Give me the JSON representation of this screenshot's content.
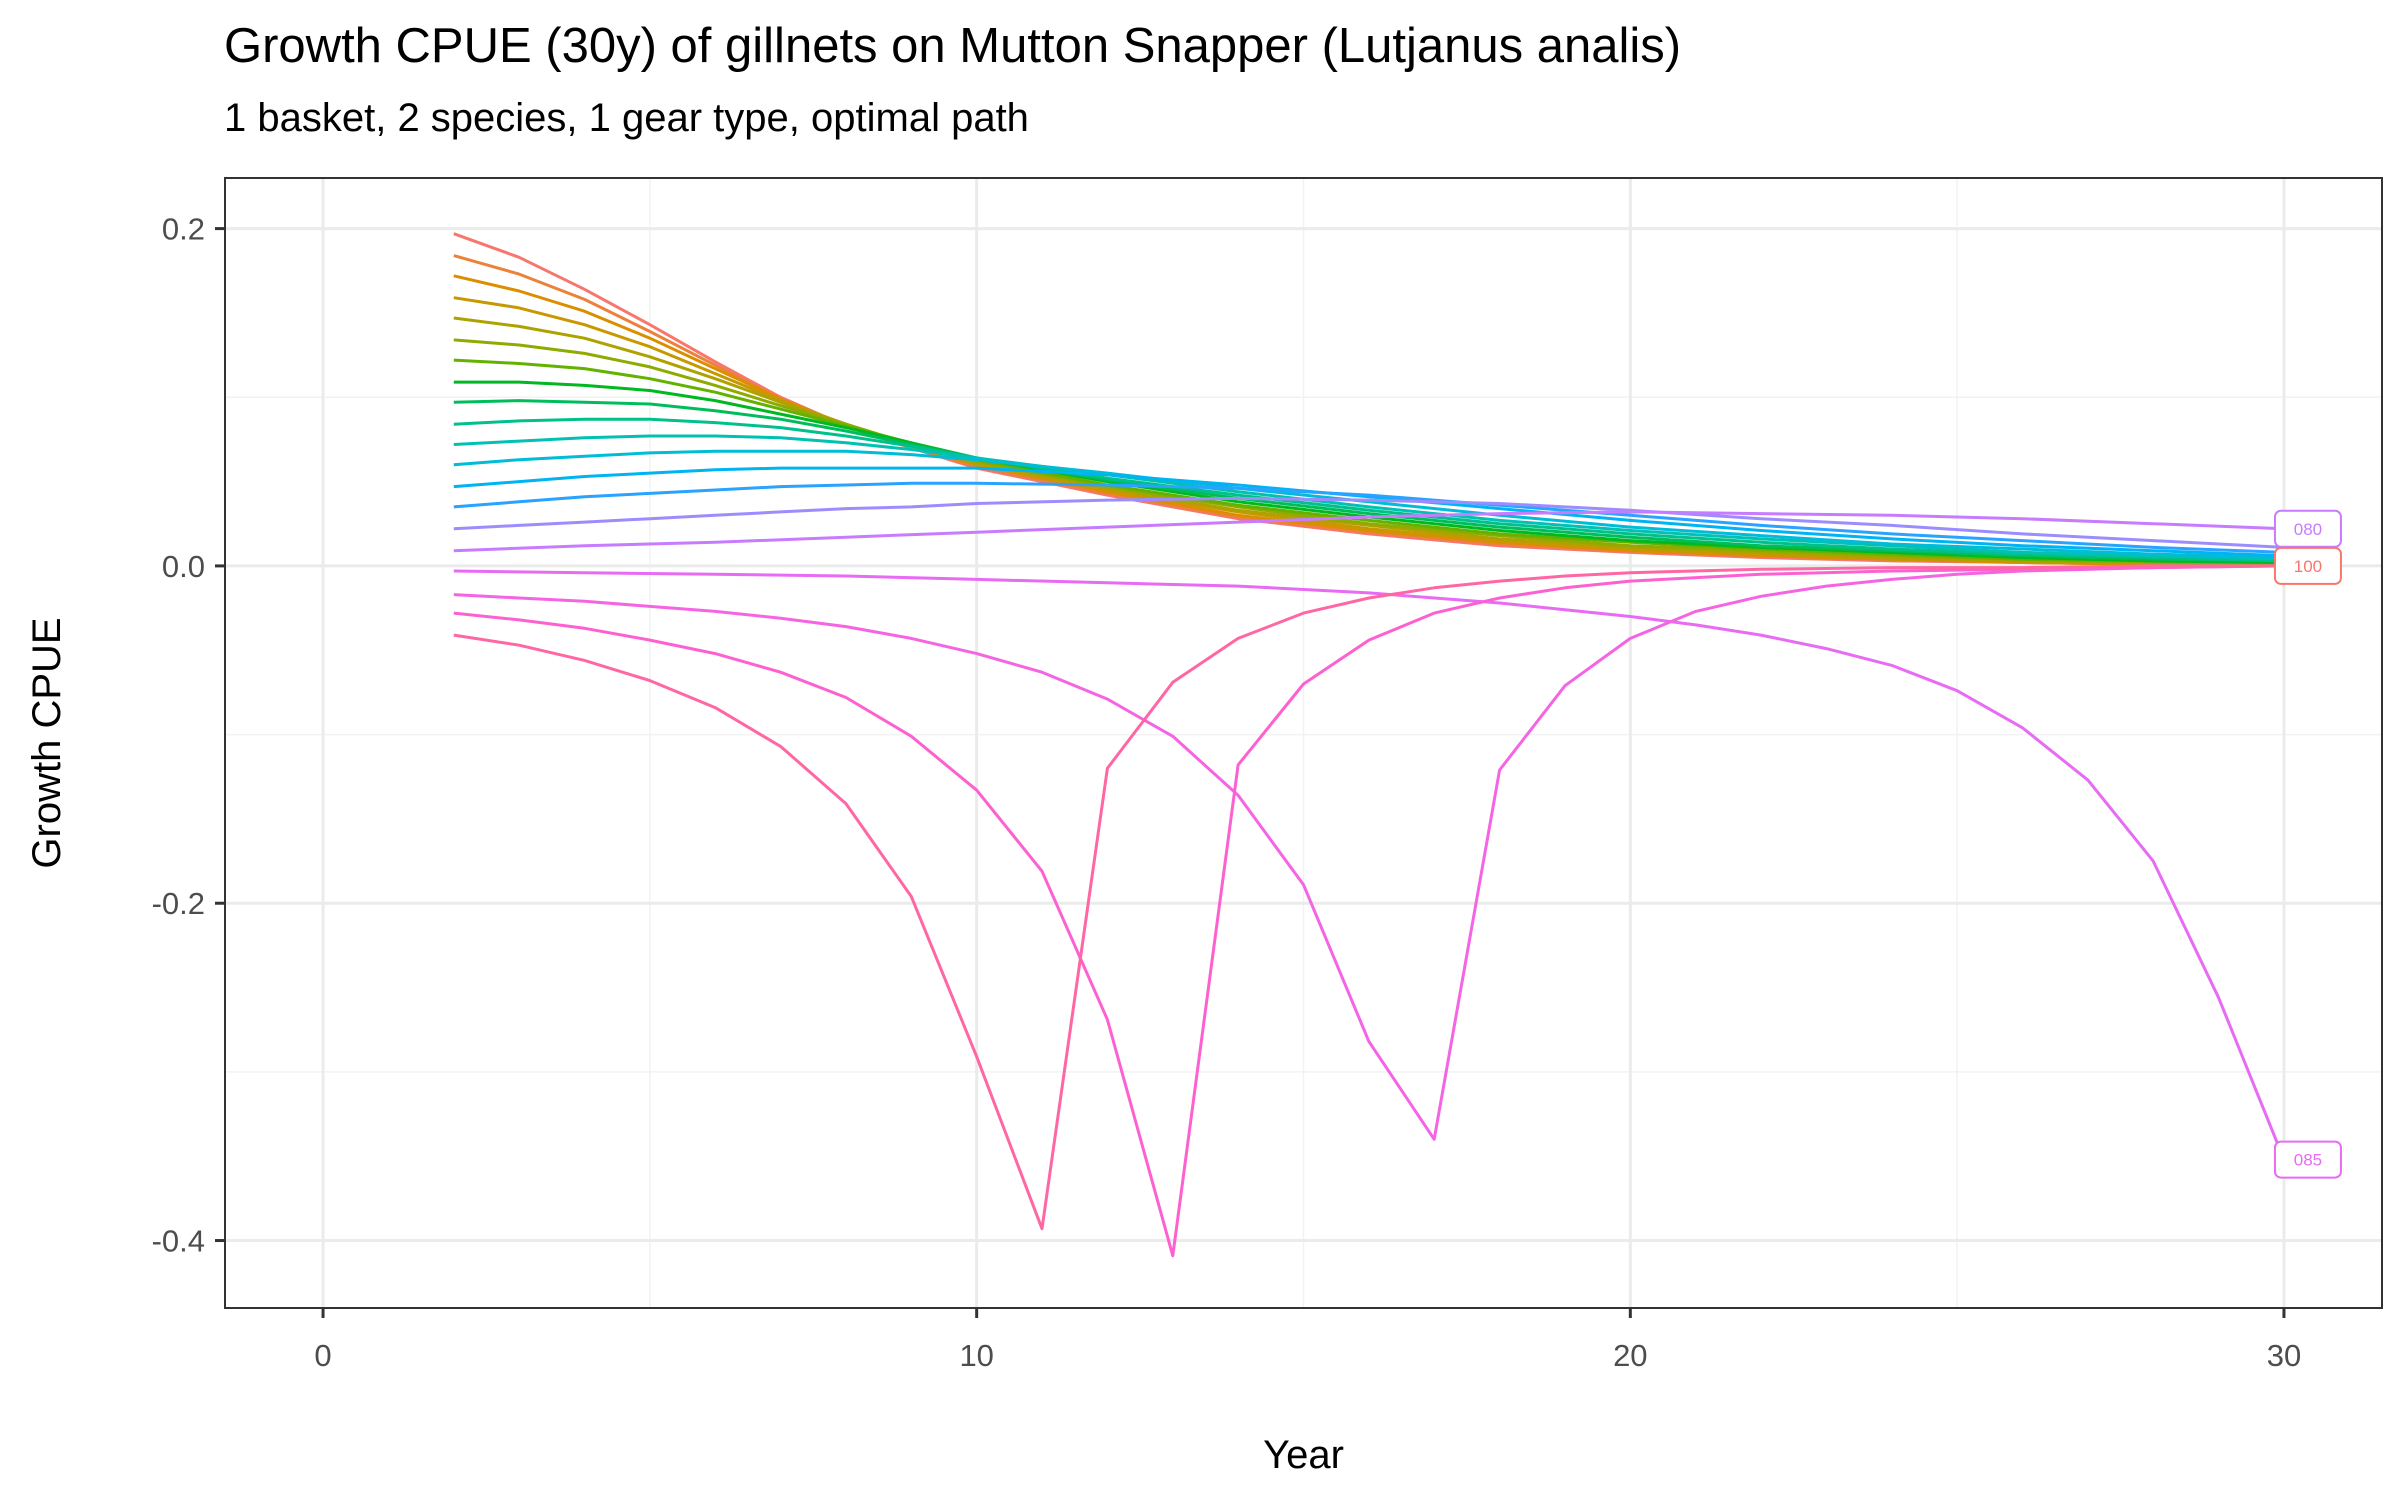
{
  "chart_data": {
    "type": "line",
    "title": "Growth CPUE (30y) of gillnets on Mutton Snapper (Lutjanus analis)",
    "subtitle": "1 basket, 2 species, 1 gear type, optimal path",
    "xlabel": "Year",
    "ylabel": "Growth CPUE",
    "xlim": [
      -1.5,
      31.5
    ],
    "ylim": [
      -0.44,
      0.23
    ],
    "x_ticks": [
      0,
      10,
      20,
      30
    ],
    "x_tick_labels": [
      "0",
      "10",
      "20",
      "30"
    ],
    "y_ticks": [
      0.2,
      0.0,
      -0.2,
      -0.4
    ],
    "y_tick_labels": [
      "0.2",
      "0.0",
      "-0.2",
      "-0.4"
    ],
    "grid": true,
    "legend": "none",
    "end_labels": [
      {
        "text": "080",
        "x": 30,
        "y": 0.022,
        "color": "#C77CFF"
      },
      {
        "text": "100",
        "x": 30,
        "y": 0.0,
        "color": "#F8766D"
      },
      {
        "text": "085",
        "x": 30,
        "y": -0.352,
        "color": "#E76BF3"
      }
    ],
    "series": [
      {
        "color": "#F8766D",
        "x": [
          2,
          3,
          4,
          5,
          6,
          7,
          8,
          9,
          10,
          12,
          14,
          16,
          18,
          20,
          22,
          24,
          26,
          28,
          30
        ],
        "y": [
          0.197,
          0.183,
          0.164,
          0.143,
          0.121,
          0.1,
          0.083,
          0.07,
          0.058,
          0.042,
          0.028,
          0.019,
          0.012,
          0.008,
          0.005,
          0.003,
          0.002,
          0.001,
          0.0
        ]
      },
      {
        "color": "#EC8239",
        "x": [
          2,
          3,
          4,
          5,
          6,
          7,
          8,
          9,
          10,
          12,
          14,
          16,
          18,
          20,
          22,
          24,
          26,
          28,
          30
        ],
        "y": [
          0.184,
          0.173,
          0.158,
          0.139,
          0.119,
          0.099,
          0.083,
          0.07,
          0.059,
          0.043,
          0.029,
          0.02,
          0.013,
          0.009,
          0.006,
          0.004,
          0.002,
          0.001,
          0.0
        ]
      },
      {
        "color": "#DB8E00",
        "x": [
          2,
          3,
          4,
          5,
          6,
          7,
          8,
          9,
          10,
          12,
          14,
          16,
          18,
          20,
          22,
          24,
          26,
          28,
          30
        ],
        "y": [
          0.172,
          0.163,
          0.151,
          0.135,
          0.117,
          0.099,
          0.083,
          0.071,
          0.06,
          0.044,
          0.03,
          0.021,
          0.014,
          0.009,
          0.006,
          0.004,
          0.002,
          0.001,
          0.001
        ]
      },
      {
        "color": "#C79800",
        "x": [
          2,
          3,
          4,
          5,
          6,
          7,
          8,
          9,
          10,
          12,
          14,
          16,
          18,
          20,
          22,
          24,
          26,
          28,
          30
        ],
        "y": [
          0.159,
          0.153,
          0.143,
          0.13,
          0.114,
          0.098,
          0.084,
          0.071,
          0.06,
          0.045,
          0.032,
          0.022,
          0.015,
          0.01,
          0.007,
          0.004,
          0.003,
          0.002,
          0.001
        ]
      },
      {
        "color": "#AEA200",
        "x": [
          2,
          3,
          4,
          5,
          6,
          7,
          8,
          9,
          10,
          12,
          14,
          16,
          18,
          20,
          22,
          24,
          26,
          28,
          30
        ],
        "y": [
          0.147,
          0.142,
          0.135,
          0.124,
          0.111,
          0.097,
          0.084,
          0.072,
          0.061,
          0.046,
          0.033,
          0.024,
          0.016,
          0.011,
          0.008,
          0.005,
          0.003,
          0.002,
          0.001
        ]
      },
      {
        "color": "#8FAA00",
        "x": [
          2,
          3,
          4,
          5,
          6,
          7,
          8,
          9,
          10,
          12,
          14,
          16,
          18,
          20,
          22,
          24,
          26,
          28,
          30
        ],
        "y": [
          0.134,
          0.131,
          0.126,
          0.118,
          0.107,
          0.095,
          0.084,
          0.072,
          0.062,
          0.047,
          0.035,
          0.025,
          0.018,
          0.012,
          0.009,
          0.006,
          0.004,
          0.002,
          0.001
        ]
      },
      {
        "color": "#64B200",
        "x": [
          2,
          3,
          4,
          5,
          6,
          7,
          8,
          9,
          10,
          12,
          14,
          16,
          18,
          20,
          22,
          24,
          26,
          28,
          30
        ],
        "y": [
          0.122,
          0.12,
          0.117,
          0.111,
          0.103,
          0.093,
          0.083,
          0.073,
          0.063,
          0.048,
          0.036,
          0.027,
          0.019,
          0.014,
          0.01,
          0.007,
          0.004,
          0.003,
          0.002
        ]
      },
      {
        "color": "#00B81F",
        "x": [
          2,
          3,
          4,
          5,
          6,
          7,
          8,
          9,
          10,
          12,
          14,
          16,
          18,
          20,
          22,
          24,
          26,
          28,
          30
        ],
        "y": [
          0.109,
          0.109,
          0.107,
          0.104,
          0.098,
          0.09,
          0.082,
          0.073,
          0.064,
          0.05,
          0.038,
          0.029,
          0.021,
          0.015,
          0.011,
          0.008,
          0.005,
          0.003,
          0.002
        ]
      },
      {
        "color": "#00BD5C",
        "x": [
          2,
          3,
          4,
          5,
          6,
          7,
          8,
          9,
          10,
          12,
          14,
          16,
          18,
          20,
          22,
          24,
          26,
          28,
          30
        ],
        "y": [
          0.097,
          0.098,
          0.097,
          0.096,
          0.092,
          0.087,
          0.08,
          0.072,
          0.064,
          0.051,
          0.04,
          0.031,
          0.023,
          0.017,
          0.012,
          0.009,
          0.006,
          0.004,
          0.003
        ]
      },
      {
        "color": "#00C08B",
        "x": [
          2,
          3,
          4,
          5,
          6,
          7,
          8,
          9,
          10,
          12,
          14,
          16,
          18,
          20,
          22,
          24,
          26,
          28,
          30
        ],
        "y": [
          0.084,
          0.086,
          0.087,
          0.087,
          0.085,
          0.082,
          0.077,
          0.071,
          0.064,
          0.052,
          0.042,
          0.033,
          0.025,
          0.019,
          0.014,
          0.01,
          0.007,
          0.005,
          0.003
        ]
      },
      {
        "color": "#00C1B2",
        "x": [
          2,
          3,
          4,
          5,
          6,
          7,
          8,
          9,
          10,
          12,
          14,
          16,
          18,
          20,
          22,
          24,
          26,
          28,
          30
        ],
        "y": [
          0.072,
          0.074,
          0.076,
          0.077,
          0.077,
          0.076,
          0.073,
          0.069,
          0.064,
          0.054,
          0.044,
          0.035,
          0.027,
          0.021,
          0.016,
          0.012,
          0.008,
          0.006,
          0.004
        ]
      },
      {
        "color": "#00BCD6",
        "x": [
          2,
          3,
          4,
          5,
          6,
          7,
          8,
          9,
          10,
          12,
          14,
          16,
          18,
          20,
          22,
          24,
          26,
          28,
          30
        ],
        "y": [
          0.06,
          0.063,
          0.065,
          0.067,
          0.068,
          0.068,
          0.068,
          0.066,
          0.063,
          0.055,
          0.046,
          0.038,
          0.03,
          0.023,
          0.018,
          0.013,
          0.01,
          0.007,
          0.005
        ]
      },
      {
        "color": "#00B3F2",
        "x": [
          2,
          3,
          4,
          5,
          6,
          7,
          8,
          9,
          10,
          12,
          14,
          16,
          18,
          20,
          22,
          24,
          26,
          28,
          30
        ],
        "y": [
          0.047,
          0.05,
          0.053,
          0.055,
          0.057,
          0.058,
          0.058,
          0.058,
          0.058,
          0.054,
          0.048,
          0.041,
          0.034,
          0.027,
          0.021,
          0.016,
          0.012,
          0.009,
          0.006
        ]
      },
      {
        "color": "#29A3FF",
        "x": [
          2,
          3,
          4,
          5,
          6,
          7,
          8,
          9,
          10,
          12,
          14,
          16,
          18,
          20,
          22,
          24,
          26,
          28,
          30
        ],
        "y": [
          0.035,
          0.038,
          0.041,
          0.043,
          0.045,
          0.047,
          0.048,
          0.049,
          0.049,
          0.048,
          0.046,
          0.042,
          0.036,
          0.03,
          0.024,
          0.019,
          0.015,
          0.011,
          0.008
        ]
      },
      {
        "color": "#9C8DFF",
        "x": [
          2,
          3,
          4,
          5,
          6,
          7,
          8,
          9,
          10,
          12,
          14,
          16,
          18,
          20,
          22,
          24,
          26,
          28,
          30
        ],
        "y": [
          0.022,
          0.024,
          0.026,
          0.028,
          0.03,
          0.032,
          0.034,
          0.035,
          0.037,
          0.039,
          0.04,
          0.039,
          0.037,
          0.033,
          0.028,
          0.024,
          0.019,
          0.015,
          0.011
        ]
      },
      {
        "color": "#C77CFF",
        "x": [
          2,
          4,
          6,
          8,
          10,
          12,
          14,
          16,
          18,
          20,
          22,
          24,
          26,
          28,
          30
        ],
        "y": [
          0.009,
          0.012,
          0.014,
          0.017,
          0.02,
          0.023,
          0.026,
          0.029,
          0.031,
          0.032,
          0.031,
          0.03,
          0.028,
          0.025,
          0.022
        ]
      },
      {
        "color": "#E76BF3",
        "x": [
          2,
          4,
          6,
          8,
          10,
          12,
          14,
          16,
          18,
          19,
          20,
          21,
          22,
          23,
          24,
          25,
          26,
          27,
          28,
          29,
          30
        ],
        "y": [
          -0.003,
          -0.004,
          -0.005,
          -0.006,
          -0.008,
          -0.01,
          -0.012,
          -0.016,
          -0.022,
          -0.026,
          -0.03,
          -0.035,
          -0.041,
          -0.049,
          -0.059,
          -0.074,
          -0.096,
          -0.127,
          -0.175,
          -0.256,
          -0.352
        ]
      },
      {
        "color": "#F564E3",
        "x": [
          2,
          3,
          4,
          5,
          6,
          7,
          8,
          9,
          10,
          11,
          12,
          13,
          14,
          15,
          16,
          17,
          18,
          19,
          20,
          21,
          22,
          23,
          24,
          25,
          26,
          28,
          30
        ],
        "y": [
          -0.017,
          -0.019,
          -0.021,
          -0.024,
          -0.027,
          -0.031,
          -0.036,
          -0.043,
          -0.052,
          -0.063,
          -0.079,
          -0.101,
          -0.136,
          -0.189,
          -0.282,
          -0.34,
          -0.121,
          -0.071,
          -0.043,
          -0.027,
          -0.018,
          -0.012,
          -0.008,
          -0.005,
          -0.003,
          -0.001,
          0.0
        ]
      },
      {
        "color": "#FD61D1",
        "x": [
          2,
          3,
          4,
          5,
          6,
          7,
          8,
          9,
          10,
          11,
          12,
          13,
          14,
          15,
          16,
          17,
          18,
          19,
          20,
          22,
          24,
          26,
          28,
          30
        ],
        "y": [
          -0.028,
          -0.032,
          -0.037,
          -0.044,
          -0.052,
          -0.063,
          -0.078,
          -0.101,
          -0.133,
          -0.181,
          -0.269,
          -0.409,
          -0.118,
          -0.07,
          -0.044,
          -0.028,
          -0.019,
          -0.013,
          -0.009,
          -0.005,
          -0.003,
          -0.002,
          -0.001,
          0.0
        ]
      },
      {
        "color": "#FF67A4",
        "x": [
          2,
          3,
          4,
          5,
          6,
          7,
          8,
          9,
          10,
          11,
          12,
          13,
          14,
          15,
          16,
          17,
          18,
          19,
          20,
          22,
          24,
          26,
          28,
          30
        ],
        "y": [
          -0.041,
          -0.047,
          -0.056,
          -0.068,
          -0.084,
          -0.107,
          -0.141,
          -0.196,
          -0.291,
          -0.393,
          -0.12,
          -0.069,
          -0.043,
          -0.028,
          -0.019,
          -0.013,
          -0.009,
          -0.006,
          -0.004,
          -0.002,
          -0.001,
          -0.001,
          0.0,
          0.0
        ]
      }
    ]
  }
}
